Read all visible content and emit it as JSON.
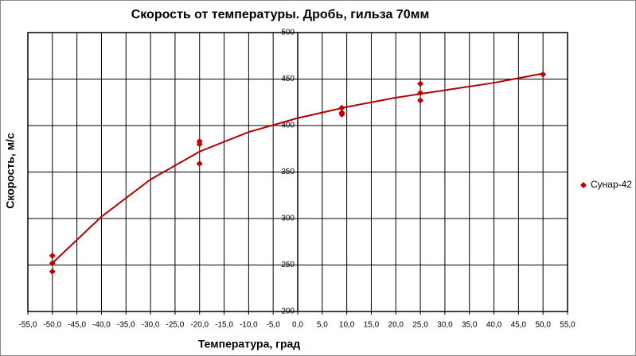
{
  "chart_data": {
    "type": "scatter",
    "title": "Скорость от температуры. Дробь, гильза 70мм",
    "x_label": "Температура, град",
    "y_label": "Скорость, м/с",
    "series": [
      {
        "name": "Сунар-42",
        "color": "#c00000",
        "x": [
          -50,
          -50,
          -50,
          -20,
          -20,
          -20,
          9,
          9,
          9,
          25,
          25,
          25,
          50
        ],
        "values": [
          260,
          252,
          243,
          383,
          380,
          359,
          419,
          414,
          412,
          445,
          435,
          427,
          455
        ]
      }
    ],
    "trendline": {
      "color": "#b00000",
      "x": [
        -50,
        -40,
        -30,
        -20,
        -10,
        0,
        10,
        20,
        30,
        40,
        50
      ],
      "values": [
        252,
        302,
        342,
        372,
        393,
        408,
        420,
        430,
        438,
        446,
        456
      ]
    },
    "xlim": [
      -55,
      55
    ],
    "xticks": [
      {
        "value": -55,
        "label": "-55,0"
      },
      {
        "value": -50,
        "label": "-50,0"
      },
      {
        "value": -45,
        "label": "-45,0"
      },
      {
        "value": -40,
        "label": "-40,0"
      },
      {
        "value": -35,
        "label": "-35,0"
      },
      {
        "value": -30,
        "label": "-30,0"
      },
      {
        "value": -25,
        "label": "-25,0"
      },
      {
        "value": -20,
        "label": "-20,0"
      },
      {
        "value": -15,
        "label": "-15,0"
      },
      {
        "value": -10,
        "label": "-10,0"
      },
      {
        "value": -5,
        "label": "-5,0"
      },
      {
        "value": 0,
        "label": "0,0"
      },
      {
        "value": 5,
        "label": "5,0"
      },
      {
        "value": 10,
        "label": "10,0"
      },
      {
        "value": 15,
        "label": "15,0"
      },
      {
        "value": 20,
        "label": "20,0"
      },
      {
        "value": 25,
        "label": "25,0"
      },
      {
        "value": 30,
        "label": "30,0"
      },
      {
        "value": 35,
        "label": "35,0"
      },
      {
        "value": 40,
        "label": "40,0"
      },
      {
        "value": 45,
        "label": "45,0"
      },
      {
        "value": 50,
        "label": "50,0"
      },
      {
        "value": 55,
        "label": "55,0"
      }
    ],
    "ylim": [
      200,
      500
    ],
    "yticks": [
      200,
      250,
      300,
      350,
      400,
      450,
      500
    ],
    "grid": true,
    "legend": "right"
  }
}
